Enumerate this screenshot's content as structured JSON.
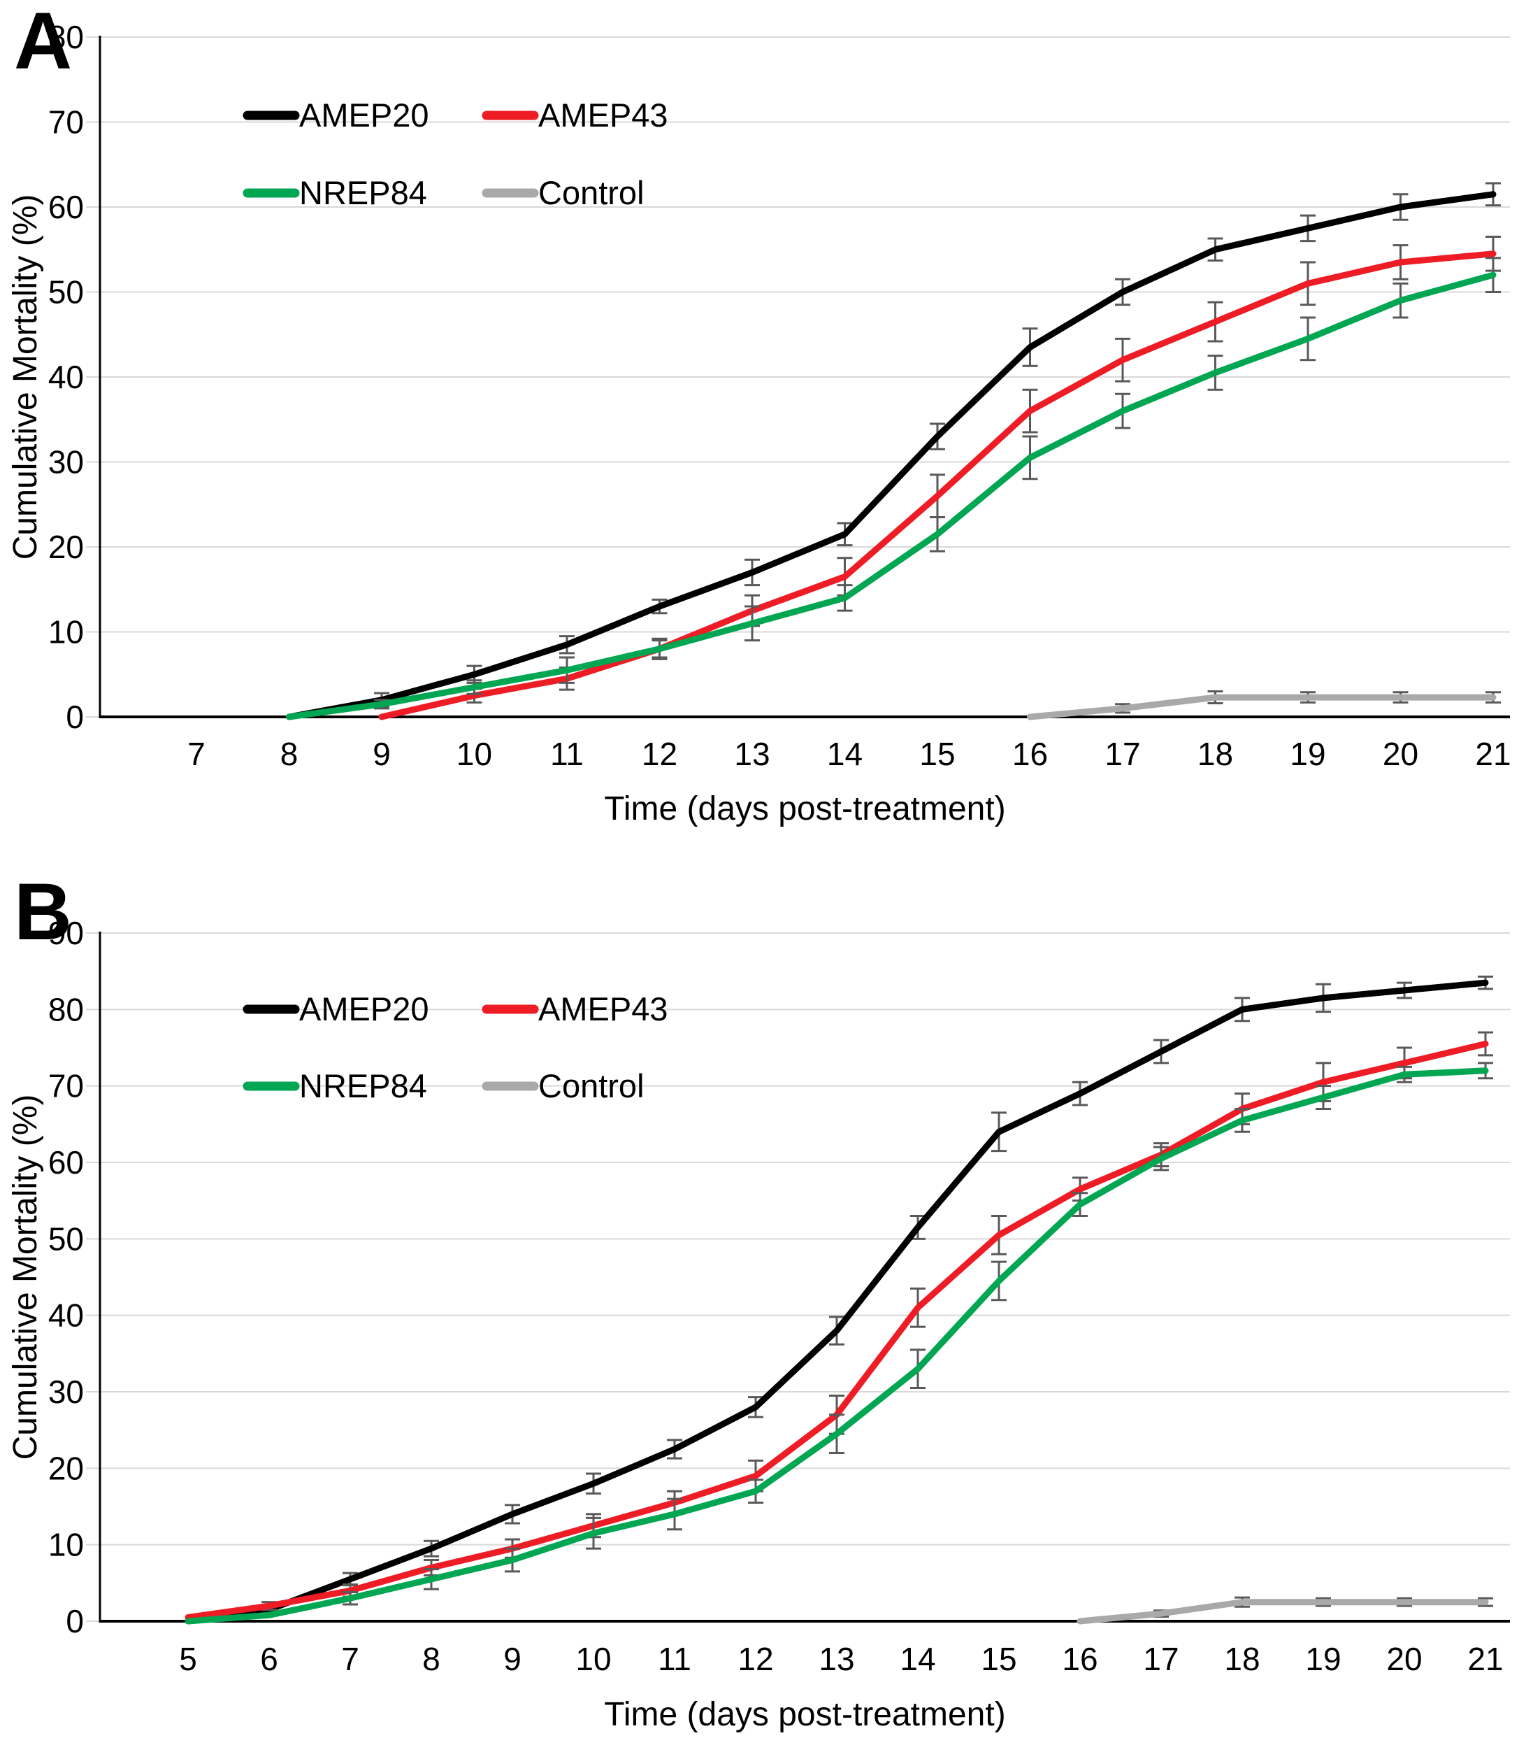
{
  "panels": [
    {
      "label": "A"
    },
    {
      "label": "B"
    }
  ],
  "colors": {
    "amep20": "#000000",
    "amep43": "#EE1C25",
    "nrep84": "#00A651",
    "control": "#A9A9A9",
    "error_bar": "#595959",
    "gridline": "#D9D9D9",
    "axis": "#000000"
  },
  "chart_data": [
    {
      "panel": "A",
      "type": "line",
      "title": "",
      "xlabel": "Time (days post-treatment)",
      "ylabel": "Cumulative Mortality (%)",
      "x": [
        7,
        8,
        9,
        10,
        11,
        12,
        13,
        14,
        15,
        16,
        17,
        18,
        19,
        20,
        21
      ],
      "ylim": [
        0,
        80
      ],
      "yticks": [
        0,
        10,
        20,
        30,
        40,
        50,
        60,
        70,
        80
      ],
      "grid": true,
      "legend_position": "top-left-inside",
      "series": [
        {
          "name": "AMEP20",
          "color": "#000000",
          "values": [
            null,
            0,
            2,
            5,
            8.5,
            13,
            17,
            21.5,
            33,
            43.5,
            50,
            55,
            57.5,
            60,
            61.5
          ],
          "errors": [
            null,
            null,
            0.8,
            1,
            1,
            0.8,
            1.5,
            1.3,
            1.5,
            2.2,
            1.5,
            1.3,
            1.5,
            1.5,
            1.3
          ]
        },
        {
          "name": "AMEP43",
          "color": "#EE1C25",
          "values": [
            null,
            null,
            0,
            2.5,
            4.5,
            8,
            12.5,
            16.5,
            26,
            36,
            42,
            46.5,
            51,
            53.5,
            54.5
          ],
          "errors": [
            null,
            null,
            null,
            0.8,
            1.3,
            1,
            1.8,
            2.2,
            2.5,
            2.5,
            2.5,
            2.3,
            2.5,
            2,
            2
          ]
        },
        {
          "name": "NREP84",
          "color": "#00A651",
          "values": [
            null,
            0,
            1.5,
            3.5,
            5.5,
            8,
            11,
            14,
            21.5,
            30.5,
            36,
            40.5,
            44.5,
            49,
            52
          ],
          "errors": [
            null,
            null,
            0.5,
            0.8,
            1.5,
            1.2,
            2,
            1.5,
            2,
            2.5,
            2,
            2,
            2.5,
            2,
            2
          ]
        },
        {
          "name": "Control",
          "color": "#A9A9A9",
          "values": [
            null,
            null,
            null,
            null,
            null,
            null,
            null,
            null,
            null,
            0,
            1,
            2.3,
            2.3,
            2.3,
            2.3
          ],
          "errors": [
            null,
            null,
            null,
            null,
            null,
            null,
            null,
            null,
            null,
            null,
            0.5,
            0.7,
            0.6,
            0.6,
            0.6
          ]
        }
      ]
    },
    {
      "panel": "B",
      "type": "line",
      "title": "",
      "xlabel": "Time (days post-treatment)",
      "ylabel": "Cumulative Mortality (%)",
      "x": [
        5,
        6,
        7,
        8,
        9,
        10,
        11,
        12,
        13,
        14,
        15,
        16,
        17,
        18,
        19,
        20,
        21
      ],
      "ylim": [
        0,
        90
      ],
      "yticks": [
        0,
        10,
        20,
        30,
        40,
        50,
        60,
        70,
        80,
        90
      ],
      "grid": true,
      "legend_position": "top-left-inside",
      "series": [
        {
          "name": "AMEP20",
          "color": "#000000",
          "values": [
            0,
            1.5,
            5.5,
            9.5,
            14,
            18,
            22.5,
            28,
            38,
            51.5,
            64,
            69,
            74.5,
            80,
            81.5,
            82.5,
            83.5
          ],
          "errors": [
            null,
            0.5,
            0.8,
            1,
            1.2,
            1.3,
            1.2,
            1.3,
            1.8,
            1.5,
            2.5,
            1.5,
            1.5,
            1.5,
            1.8,
            1,
            0.8
          ]
        },
        {
          "name": "AMEP43",
          "color": "#EE1C25",
          "values": [
            0.5,
            2,
            4,
            7,
            9.5,
            12.5,
            15.5,
            19,
            27,
            41,
            50.5,
            56.5,
            61,
            67,
            70.5,
            73,
            75.5
          ],
          "errors": [
            null,
            0.5,
            0.8,
            1,
            1.2,
            1.5,
            1.5,
            2,
            2.5,
            2.5,
            2.5,
            1.5,
            1.5,
            2,
            2.5,
            2,
            1.5
          ]
        },
        {
          "name": "NREP84",
          "color": "#00A651",
          "values": [
            0,
            0.8,
            3,
            5.5,
            8,
            11.5,
            14,
            17,
            24.5,
            33,
            44.5,
            54.5,
            60.5,
            65.5,
            68.5,
            71.5,
            72
          ],
          "errors": [
            null,
            null,
            0.8,
            1.3,
            1.5,
            2,
            2,
            1.5,
            2.5,
            2.5,
            2.5,
            1.5,
            1.5,
            1.5,
            1.5,
            1,
            1
          ]
        },
        {
          "name": "Control",
          "color": "#A9A9A9",
          "values": [
            null,
            null,
            null,
            null,
            null,
            null,
            null,
            null,
            null,
            null,
            null,
            0,
            1,
            2.5,
            2.5,
            2.5,
            2.5
          ],
          "errors": [
            null,
            null,
            null,
            null,
            null,
            null,
            null,
            null,
            null,
            null,
            null,
            null,
            0.4,
            0.6,
            0.5,
            0.5,
            0.5
          ]
        }
      ]
    }
  ]
}
